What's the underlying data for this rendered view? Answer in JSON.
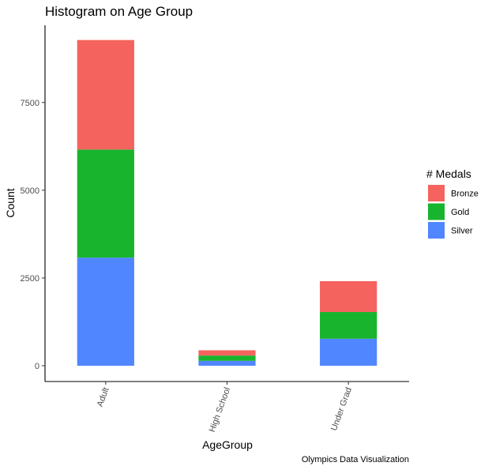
{
  "chart_data": {
    "type": "bar",
    "stacked": true,
    "title": "Histogram on Age Group",
    "xlabel": "AgeGroup",
    "ylabel": "Count",
    "caption": "Olympics Data Visualization",
    "categories": [
      "Adult",
      "High School",
      "Under Grad"
    ],
    "series": [
      {
        "name": "Silver",
        "color": "#5086FF",
        "values": [
          3080,
          140,
          770
        ]
      },
      {
        "name": "Gold",
        "color": "#19B42E",
        "values": [
          3080,
          150,
          760
        ]
      },
      {
        "name": "Bronze",
        "color": "#F4635E",
        "values": [
          3120,
          150,
          880
        ]
      }
    ],
    "legend": {
      "title": "# Medals",
      "position": "right",
      "order": [
        "Bronze",
        "Gold",
        "Silver"
      ]
    },
    "ylim": [
      -450,
      9700
    ],
    "yticks": [
      0,
      2500,
      5000,
      7500
    ],
    "ytick_labels": [
      "0",
      "2500",
      "5000",
      "7500"
    ],
    "grid": false
  }
}
